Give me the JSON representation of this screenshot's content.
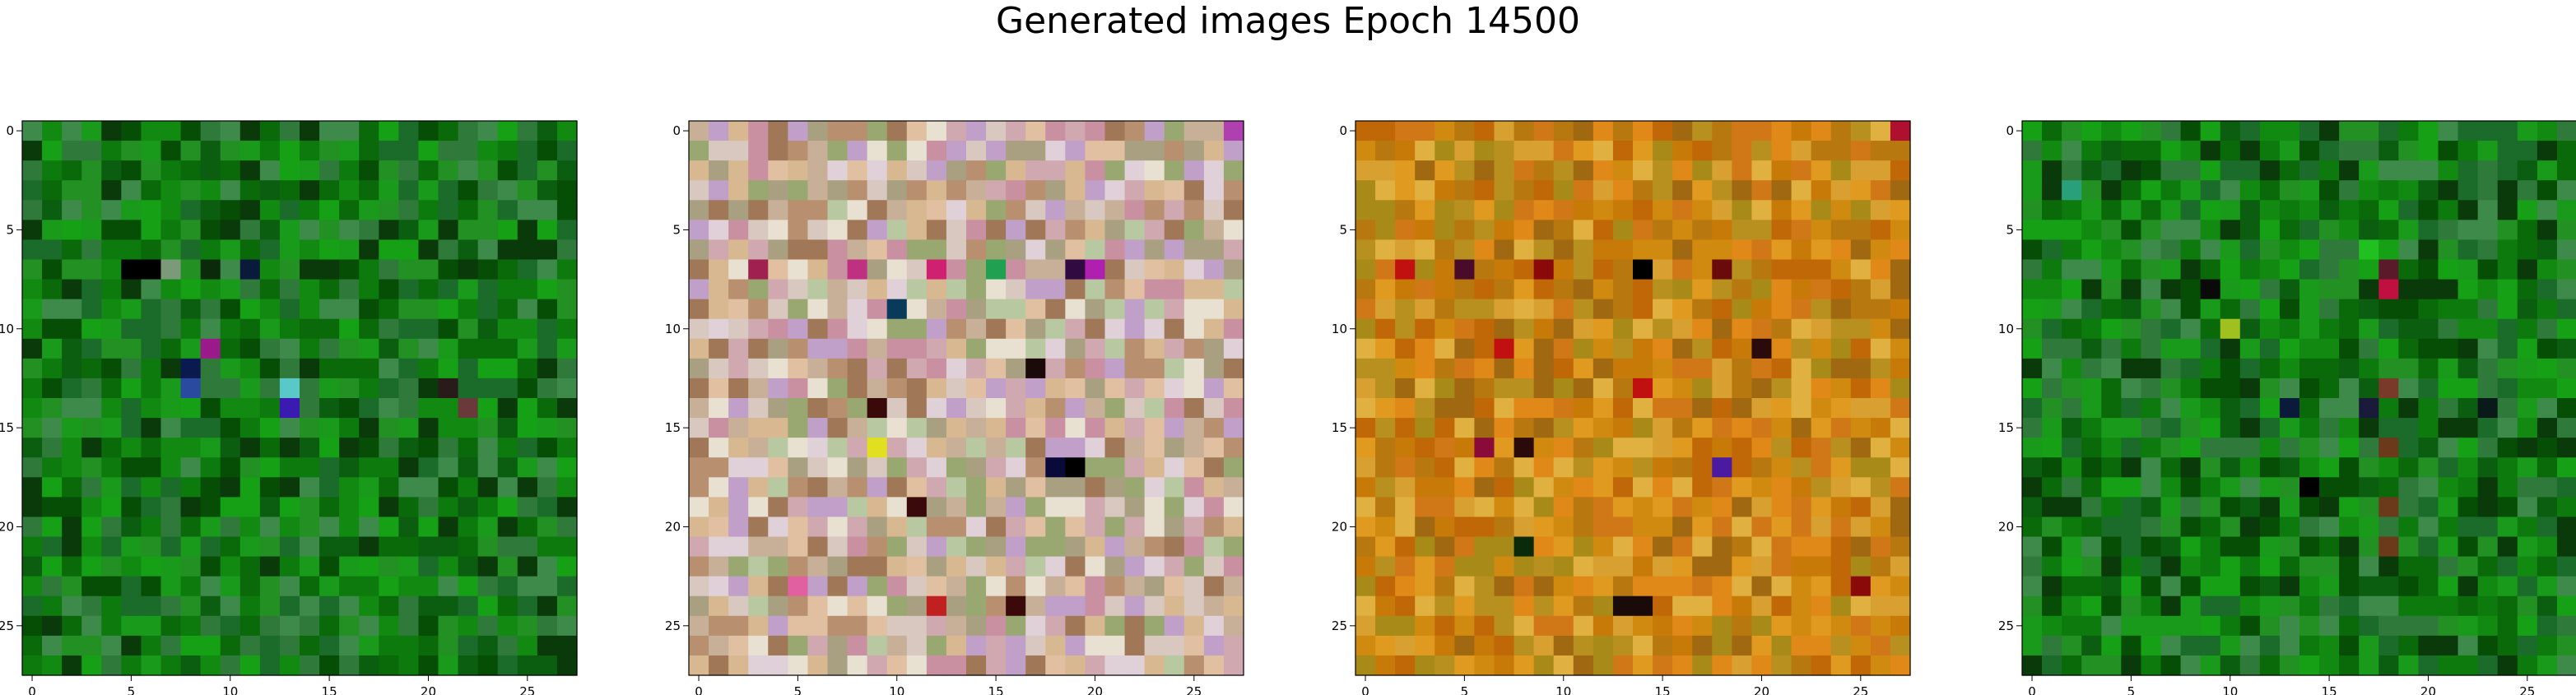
{
  "figure": {
    "title": "Generated images Epoch 14500"
  },
  "chart_data": [
    {
      "type": "heatmap",
      "grid_size": 28,
      "xlim": [
        0,
        27
      ],
      "ylim": [
        27,
        0
      ],
      "x_ticks": [
        0,
        5,
        10,
        15,
        20,
        25
      ],
      "y_ticks": [
        0,
        5,
        10,
        15,
        20,
        25
      ],
      "palette": [
        "#0a6a0a",
        "#0d7a0d",
        "#128a12",
        "#064d06",
        "#1a9a1a",
        "#2f7a3a",
        "#0b5e10",
        "#239023",
        "#3e8a4a",
        "#0a3a0a",
        "#15a015",
        "#1b6b2a"
      ],
      "accents": [
        {
          "x": 5,
          "y": 7,
          "color": "#000000"
        },
        {
          "x": 6,
          "y": 7,
          "color": "#000000"
        },
        {
          "x": 7,
          "y": 7,
          "color": "#7a9a7a"
        },
        {
          "x": 9,
          "y": 7,
          "color": "#0a2a0a"
        },
        {
          "x": 11,
          "y": 7,
          "color": "#0a1a3a"
        },
        {
          "x": 8,
          "y": 12,
          "color": "#0a1a50"
        },
        {
          "x": 9,
          "y": 11,
          "color": "#9a1a8a"
        },
        {
          "x": 8,
          "y": 13,
          "color": "#2a4aa0"
        },
        {
          "x": 13,
          "y": 13,
          "color": "#5ac8c8"
        },
        {
          "x": 13,
          "y": 14,
          "color": "#3a1ab0"
        },
        {
          "x": 21,
          "y": 13,
          "color": "#2a1a1a"
        },
        {
          "x": 22,
          "y": 14,
          "color": "#6a3a3a"
        }
      ]
    },
    {
      "type": "heatmap",
      "grid_size": 28,
      "xlim": [
        0,
        27
      ],
      "ylim": [
        27,
        0
      ],
      "x_ticks": [
        0,
        5,
        10,
        15,
        20,
        25
      ],
      "y_ticks": [
        0,
        5,
        10,
        15,
        20,
        25
      ],
      "palette": [
        "#d8c8c0",
        "#c8b098",
        "#e0d0d8",
        "#b89070",
        "#d0a8b0",
        "#a8a080",
        "#e8e0d0",
        "#c890a0",
        "#98a870",
        "#d8b890",
        "#b8c8a0",
        "#c0a0c8",
        "#e0c0a0",
        "#a07858"
      ],
      "accents": [
        {
          "x": 27,
          "y": 0,
          "color": "#b040b0"
        },
        {
          "x": 3,
          "y": 7,
          "color": "#a02050"
        },
        {
          "x": 8,
          "y": 7,
          "color": "#c03080"
        },
        {
          "x": 12,
          "y": 7,
          "color": "#d02070"
        },
        {
          "x": 15,
          "y": 7,
          "color": "#20a050"
        },
        {
          "x": 19,
          "y": 7,
          "color": "#300a40"
        },
        {
          "x": 20,
          "y": 7,
          "color": "#b020b0"
        },
        {
          "x": 10,
          "y": 9,
          "color": "#0a3a5a"
        },
        {
          "x": 17,
          "y": 12,
          "color": "#1a0a0a"
        },
        {
          "x": 9,
          "y": 14,
          "color": "#3a0a0a"
        },
        {
          "x": 9,
          "y": 16,
          "color": "#e0e020"
        },
        {
          "x": 18,
          "y": 17,
          "color": "#0a0a3a"
        },
        {
          "x": 19,
          "y": 17,
          "color": "#000000"
        },
        {
          "x": 11,
          "y": 19,
          "color": "#3a0a0a"
        },
        {
          "x": 12,
          "y": 24,
          "color": "#c02020"
        },
        {
          "x": 16,
          "y": 24,
          "color": "#3a0a0a"
        },
        {
          "x": 5,
          "y": 23,
          "color": "#e060a0"
        }
      ]
    },
    {
      "type": "heatmap",
      "grid_size": 28,
      "xlim": [
        0,
        27
      ],
      "ylim": [
        27,
        0
      ],
      "x_ticks": [
        0,
        5,
        10,
        15,
        20,
        25
      ],
      "y_ticks": [
        0,
        5,
        10,
        15,
        20,
        25
      ],
      "palette": [
        "#d08a10",
        "#c87a08",
        "#e09a20",
        "#b87810",
        "#d8a030",
        "#c06808",
        "#a88a18",
        "#e0b040",
        "#d07818",
        "#b89020",
        "#e08818",
        "#a06810"
      ],
      "accents": [
        {
          "x": 27,
          "y": 0,
          "color": "#b01030"
        },
        {
          "x": 2,
          "y": 7,
          "color": "#c01010"
        },
        {
          "x": 5,
          "y": 7,
          "color": "#4a0a2a"
        },
        {
          "x": 9,
          "y": 7,
          "color": "#8a0a0a"
        },
        {
          "x": 14,
          "y": 7,
          "color": "#000000"
        },
        {
          "x": 18,
          "y": 7,
          "color": "#6a0a0a"
        },
        {
          "x": 7,
          "y": 11,
          "color": "#c01010"
        },
        {
          "x": 14,
          "y": 13,
          "color": "#c01010"
        },
        {
          "x": 20,
          "y": 11,
          "color": "#2a0a0a"
        },
        {
          "x": 6,
          "y": 16,
          "color": "#8a0a3a"
        },
        {
          "x": 8,
          "y": 16,
          "color": "#2a0a0a"
        },
        {
          "x": 18,
          "y": 17,
          "color": "#4a1aa0"
        },
        {
          "x": 8,
          "y": 21,
          "color": "#0a2a0a"
        },
        {
          "x": 13,
          "y": 24,
          "color": "#1a0a0a"
        },
        {
          "x": 14,
          "y": 24,
          "color": "#1a0a0a"
        },
        {
          "x": 25,
          "y": 23,
          "color": "#8a0a0a"
        }
      ]
    },
    {
      "type": "heatmap",
      "grid_size": 28,
      "xlim": [
        0,
        27
      ],
      "ylim": [
        27,
        0
      ],
      "x_ticks": [
        0,
        5,
        10,
        15,
        20,
        25
      ],
      "y_ticks": [
        0,
        5,
        10,
        15,
        20,
        25
      ],
      "palette": [
        "#0a6a0a",
        "#0d7a0d",
        "#128a12",
        "#064d06",
        "#1a9a1a",
        "#2f7a3a",
        "#0b5e10",
        "#239023",
        "#3e8a4a",
        "#0a3a0a",
        "#15a015",
        "#1b6b2a"
      ],
      "accents": [
        {
          "x": 2,
          "y": 3,
          "color": "#2aa07a"
        },
        {
          "x": 18,
          "y": 8,
          "color": "#c01040"
        },
        {
          "x": 18,
          "y": 7,
          "color": "#5a1a2a"
        },
        {
          "x": 9,
          "y": 8,
          "color": "#0a0a0a"
        },
        {
          "x": 10,
          "y": 10,
          "color": "#a0c020"
        },
        {
          "x": 17,
          "y": 6,
          "color": "#20c020"
        },
        {
          "x": 17,
          "y": 14,
          "color": "#1a1a3a"
        },
        {
          "x": 13,
          "y": 14,
          "color": "#0a1a3a"
        },
        {
          "x": 14,
          "y": 18,
          "color": "#000000"
        },
        {
          "x": 18,
          "y": 13,
          "color": "#7a3a2a"
        },
        {
          "x": 18,
          "y": 16,
          "color": "#6a3a1a"
        },
        {
          "x": 18,
          "y": 19,
          "color": "#6a3a1a"
        },
        {
          "x": 18,
          "y": 21,
          "color": "#6a3a1a"
        },
        {
          "x": 23,
          "y": 14,
          "color": "#0a1a1a"
        }
      ]
    }
  ]
}
